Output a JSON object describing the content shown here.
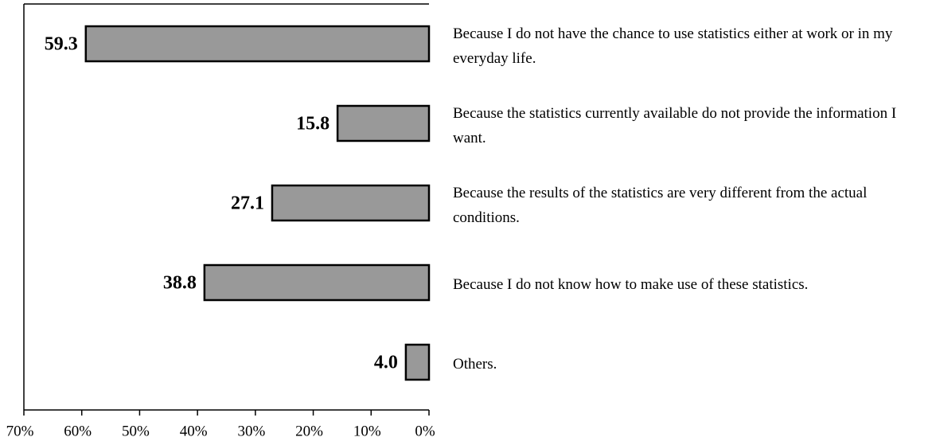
{
  "chart_data": {
    "type": "bar",
    "orientation": "horizontal",
    "x_reversed": true,
    "categories": [
      "Because I do not have the chance to use statistics either at work or in my everyday life.",
      "Because the statistics currently available do not provide the information I want.",
      "Because the results of the statistics are very different from the actual conditions.",
      "Because I do not know how to make use of these statistics.",
      "Others."
    ],
    "values": [
      59.3,
      15.8,
      27.1,
      38.8,
      4.0
    ],
    "value_labels": [
      "59.3",
      "15.8",
      "27.1",
      "38.8",
      "4.0"
    ],
    "color": "#999999",
    "xlim": [
      0,
      70
    ],
    "xticks": [
      {
        "value": 70,
        "label": "70%"
      },
      {
        "value": 60,
        "label": "60%"
      },
      {
        "value": 50,
        "label": "50%"
      },
      {
        "value": 40,
        "label": "40%"
      },
      {
        "value": 30,
        "label": "30%"
      },
      {
        "value": 20,
        "label": "20%"
      },
      {
        "value": 10,
        "label": "10%"
      },
      {
        "value": 0,
        "label": "0%"
      }
    ]
  }
}
